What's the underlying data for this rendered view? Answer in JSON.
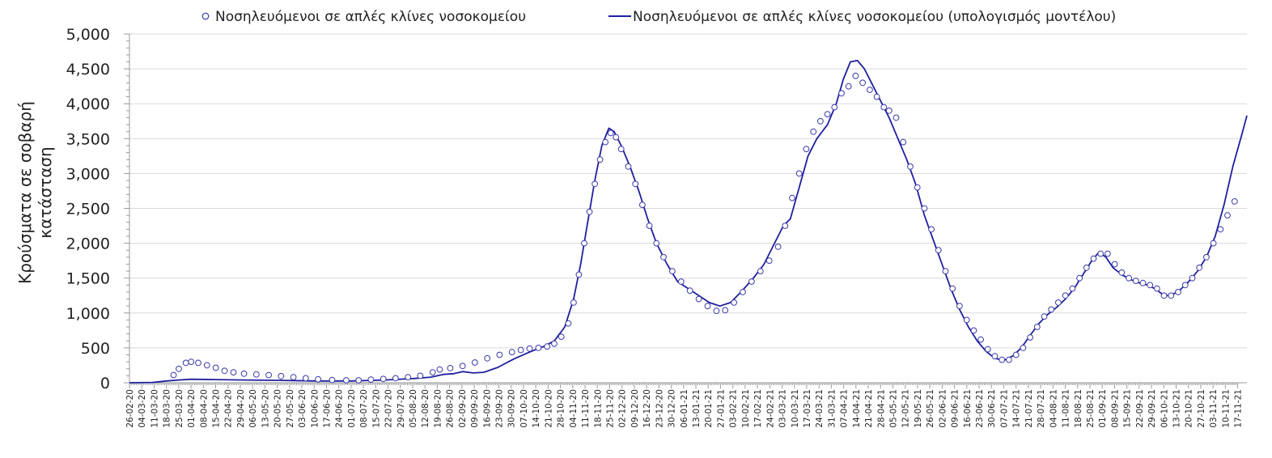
{
  "chart_data": {
    "type": "line",
    "title": "",
    "xlabel": "",
    "ylabel_lines": [
      "Κρούσματα σε σοβαρή",
      "κατάσταση"
    ],
    "ylim": [
      0,
      5000
    ],
    "y_ticks": [
      "0",
      "500",
      "1,000",
      "1,500",
      "2,000",
      "2,500",
      "3,000",
      "3,500",
      "4,000",
      "4,500",
      "5,000"
    ],
    "grid": "horizontal",
    "legend_position": "top",
    "x_start_date": "2020-02-26",
    "x_end_date": "2021-11-21",
    "categories": [
      "26-02-20",
      "04-03-20",
      "11-03-20",
      "18-03-20",
      "25-03-20",
      "01-04-20",
      "08-04-20",
      "15-04-20",
      "22-04-20",
      "29-04-20",
      "06-05-20",
      "13-05-20",
      "20-05-20",
      "27-05-20",
      "03-06-20",
      "10-06-20",
      "17-06-20",
      "24-06-20",
      "01-07-20",
      "08-07-20",
      "15-07-20",
      "22-07-20",
      "29-07-20",
      "05-08-20",
      "12-08-20",
      "19-08-20",
      "26-08-20",
      "02-09-20",
      "09-09-20",
      "16-09-20",
      "23-09-20",
      "30-09-20",
      "07-10-20",
      "14-10-20",
      "21-10-20",
      "28-10-20",
      "04-11-20",
      "11-11-20",
      "18-11-20",
      "25-11-20",
      "02-12-20",
      "09-12-20",
      "16-12-20",
      "23-12-20",
      "30-12-20",
      "06-01-21",
      "13-01-21",
      "20-01-21",
      "27-01-21",
      "03-02-21",
      "10-02-21",
      "17-02-21",
      "24-02-21",
      "03-03-21",
      "10-03-21",
      "17-03-21",
      "24-03-21",
      "31-03-21",
      "07-04-21",
      "14-04-21",
      "21-04-21",
      "28-04-21",
      "05-05-21",
      "12-05-21",
      "19-05-21",
      "26-05-21",
      "02-06-21",
      "09-06-21",
      "16-06-21",
      "23-06-21",
      "30-06-21",
      "07-07-21",
      "14-07-21",
      "21-07-21",
      "28-07-21",
      "04-08-21",
      "11-08-21",
      "18-08-21",
      "25-08-21",
      "01-09-21",
      "08-09-21",
      "15-09-21",
      "22-09-21",
      "29-09-21",
      "06-10-21",
      "13-10-21",
      "20-10-21",
      "27-10-21",
      "03-11-21",
      "10-11-21",
      "17-11-21"
    ],
    "series": [
      {
        "name": "Νοσηλευόμενοι σε απλές κλίνες νοσοκομείου",
        "kind": "scatter",
        "marker": "open-circle",
        "color": "#3a3aa8",
        "points": [
          [
            "2020-03-22",
            110
          ],
          [
            "2020-03-25",
            200
          ],
          [
            "2020-03-29",
            285
          ],
          [
            "2020-04-01",
            300
          ],
          [
            "2020-04-05",
            285
          ],
          [
            "2020-04-10",
            250
          ],
          [
            "2020-04-15",
            215
          ],
          [
            "2020-04-20",
            170
          ],
          [
            "2020-04-25",
            150
          ],
          [
            "2020-05-01",
            130
          ],
          [
            "2020-05-08",
            120
          ],
          [
            "2020-05-15",
            110
          ],
          [
            "2020-05-22",
            95
          ],
          [
            "2020-05-29",
            80
          ],
          [
            "2020-06-05",
            65
          ],
          [
            "2020-06-12",
            50
          ],
          [
            "2020-06-20",
            40
          ],
          [
            "2020-06-28",
            35
          ],
          [
            "2020-07-05",
            35
          ],
          [
            "2020-07-12",
            45
          ],
          [
            "2020-07-19",
            55
          ],
          [
            "2020-07-26",
            65
          ],
          [
            "2020-08-02",
            80
          ],
          [
            "2020-08-09",
            100
          ],
          [
            "2020-08-16",
            150
          ],
          [
            "2020-08-20",
            190
          ],
          [
            "2020-08-26",
            210
          ],
          [
            "2020-09-02",
            240
          ],
          [
            "2020-09-09",
            290
          ],
          [
            "2020-09-16",
            350
          ],
          [
            "2020-09-23",
            400
          ],
          [
            "2020-09-30",
            440
          ],
          [
            "2020-10-05",
            470
          ],
          [
            "2020-10-10",
            490
          ],
          [
            "2020-10-15",
            500
          ],
          [
            "2020-10-20",
            520
          ],
          [
            "2020-10-24",
            560
          ],
          [
            "2020-10-28",
            660
          ],
          [
            "2020-11-01",
            850
          ],
          [
            "2020-11-04",
            1150
          ],
          [
            "2020-11-07",
            1550
          ],
          [
            "2020-11-10",
            2000
          ],
          [
            "2020-11-13",
            2450
          ],
          [
            "2020-11-16",
            2850
          ],
          [
            "2020-11-19",
            3200
          ],
          [
            "2020-11-22",
            3450
          ],
          [
            "2020-11-25",
            3580
          ],
          [
            "2020-11-28",
            3520
          ],
          [
            "2020-12-01",
            3350
          ],
          [
            "2020-12-05",
            3100
          ],
          [
            "2020-12-09",
            2850
          ],
          [
            "2020-12-13",
            2550
          ],
          [
            "2020-12-17",
            2250
          ],
          [
            "2020-12-21",
            2000
          ],
          [
            "2020-12-25",
            1800
          ],
          [
            "2020-12-30",
            1600
          ],
          [
            "2021-01-04",
            1450
          ],
          [
            "2021-01-09",
            1320
          ],
          [
            "2021-01-14",
            1200
          ],
          [
            "2021-01-19",
            1100
          ],
          [
            "2021-01-24",
            1030
          ],
          [
            "2021-01-29",
            1040
          ],
          [
            "2021-02-03",
            1150
          ],
          [
            "2021-02-08",
            1300
          ],
          [
            "2021-02-13",
            1450
          ],
          [
            "2021-02-18",
            1600
          ],
          [
            "2021-02-23",
            1750
          ],
          [
            "2021-02-28",
            1950
          ],
          [
            "2021-03-04",
            2250
          ],
          [
            "2021-03-08",
            2650
          ],
          [
            "2021-03-12",
            3000
          ],
          [
            "2021-03-16",
            3350
          ],
          [
            "2021-03-20",
            3600
          ],
          [
            "2021-03-24",
            3750
          ],
          [
            "2021-03-28",
            3850
          ],
          [
            "2021-04-01",
            3950
          ],
          [
            "2021-04-05",
            4150
          ],
          [
            "2021-04-09",
            4250
          ],
          [
            "2021-04-13",
            4400
          ],
          [
            "2021-04-17",
            4300
          ],
          [
            "2021-04-21",
            4200
          ],
          [
            "2021-04-25",
            4100
          ],
          [
            "2021-04-29",
            3950
          ],
          [
            "2021-05-02",
            3900
          ],
          [
            "2021-05-06",
            3800
          ],
          [
            "2021-05-10",
            3450
          ],
          [
            "2021-05-14",
            3100
          ],
          [
            "2021-05-18",
            2800
          ],
          [
            "2021-05-22",
            2500
          ],
          [
            "2021-05-26",
            2200
          ],
          [
            "2021-05-30",
            1900
          ],
          [
            "2021-06-03",
            1600
          ],
          [
            "2021-06-07",
            1350
          ],
          [
            "2021-06-11",
            1100
          ],
          [
            "2021-06-15",
            900
          ],
          [
            "2021-06-19",
            750
          ],
          [
            "2021-06-23",
            620
          ],
          [
            "2021-06-27",
            480
          ],
          [
            "2021-07-01",
            380
          ],
          [
            "2021-07-05",
            330
          ],
          [
            "2021-07-09",
            330
          ],
          [
            "2021-07-13",
            400
          ],
          [
            "2021-07-17",
            500
          ],
          [
            "2021-07-21",
            650
          ],
          [
            "2021-07-25",
            800
          ],
          [
            "2021-07-29",
            950
          ],
          [
            "2021-08-02",
            1050
          ],
          [
            "2021-08-06",
            1150
          ],
          [
            "2021-08-10",
            1250
          ],
          [
            "2021-08-14",
            1350
          ],
          [
            "2021-08-18",
            1500
          ],
          [
            "2021-08-22",
            1650
          ],
          [
            "2021-08-26",
            1780
          ],
          [
            "2021-08-30",
            1850
          ],
          [
            "2021-09-03",
            1850
          ],
          [
            "2021-09-07",
            1700
          ],
          [
            "2021-09-11",
            1580
          ],
          [
            "2021-09-15",
            1500
          ],
          [
            "2021-09-19",
            1460
          ],
          [
            "2021-09-23",
            1430
          ],
          [
            "2021-09-27",
            1400
          ],
          [
            "2021-10-01",
            1350
          ],
          [
            "2021-10-05",
            1250
          ],
          [
            "2021-10-09",
            1250
          ],
          [
            "2021-10-13",
            1300
          ],
          [
            "2021-10-17",
            1400
          ],
          [
            "2021-10-21",
            1500
          ],
          [
            "2021-10-25",
            1650
          ],
          [
            "2021-10-29",
            1800
          ],
          [
            "2021-11-02",
            2000
          ],
          [
            "2021-11-06",
            2200
          ],
          [
            "2021-11-10",
            2400
          ],
          [
            "2021-11-14",
            2600
          ]
        ]
      },
      {
        "name": "Νοσηλευόμενοι σε απλές κλίνες νοσοκομείου (υπολογισμός μοντέλου)",
        "kind": "line",
        "color": "#1f1fa0",
        "points": [
          [
            "2020-02-26",
            0
          ],
          [
            "2020-03-10",
            5
          ],
          [
            "2020-03-18",
            25
          ],
          [
            "2020-03-25",
            40
          ],
          [
            "2020-04-01",
            50
          ],
          [
            "2020-04-15",
            45
          ],
          [
            "2020-05-01",
            40
          ],
          [
            "2020-05-20",
            35
          ],
          [
            "2020-06-10",
            25
          ],
          [
            "2020-07-01",
            25
          ],
          [
            "2020-07-20",
            40
          ],
          [
            "2020-08-05",
            60
          ],
          [
            "2020-08-15",
            80
          ],
          [
            "2020-08-22",
            120
          ],
          [
            "2020-08-28",
            130
          ],
          [
            "2020-09-02",
            160
          ],
          [
            "2020-09-08",
            140
          ],
          [
            "2020-09-14",
            150
          ],
          [
            "2020-09-22",
            220
          ],
          [
            "2020-10-01",
            340
          ],
          [
            "2020-10-10",
            440
          ],
          [
            "2020-10-18",
            520
          ],
          [
            "2020-10-24",
            600
          ],
          [
            "2020-10-30",
            800
          ],
          [
            "2020-11-04",
            1200
          ],
          [
            "2020-11-08",
            1700
          ],
          [
            "2020-11-12",
            2300
          ],
          [
            "2020-11-16",
            2900
          ],
          [
            "2020-11-20",
            3400
          ],
          [
            "2020-11-24",
            3650
          ],
          [
            "2020-11-27",
            3600
          ],
          [
            "2020-12-01",
            3400
          ],
          [
            "2020-12-06",
            3100
          ],
          [
            "2020-12-11",
            2750
          ],
          [
            "2020-12-16",
            2350
          ],
          [
            "2020-12-21",
            2000
          ],
          [
            "2020-12-27",
            1700
          ],
          [
            "2021-01-02",
            1450
          ],
          [
            "2021-01-08",
            1350
          ],
          [
            "2021-01-14",
            1250
          ],
          [
            "2021-01-20",
            1150
          ],
          [
            "2021-01-26",
            1100
          ],
          [
            "2021-02-01",
            1150
          ],
          [
            "2021-02-07",
            1300
          ],
          [
            "2021-02-14",
            1500
          ],
          [
            "2021-02-20",
            1700
          ],
          [
            "2021-02-26",
            2000
          ],
          [
            "2021-03-03",
            2250
          ],
          [
            "2021-03-07",
            2350
          ],
          [
            "2021-03-12",
            2800
          ],
          [
            "2021-03-17",
            3250
          ],
          [
            "2021-03-22",
            3500
          ],
          [
            "2021-03-28",
            3700
          ],
          [
            "2021-04-02",
            4000
          ],
          [
            "2021-04-06",
            4350
          ],
          [
            "2021-04-10",
            4600
          ],
          [
            "2021-04-14",
            4620
          ],
          [
            "2021-04-18",
            4500
          ],
          [
            "2021-04-22",
            4300
          ],
          [
            "2021-04-27",
            4050
          ],
          [
            "2021-05-02",
            3800
          ],
          [
            "2021-05-07",
            3500
          ],
          [
            "2021-05-12",
            3200
          ],
          [
            "2021-05-17",
            2850
          ],
          [
            "2021-05-22",
            2400
          ],
          [
            "2021-05-27",
            2050
          ],
          [
            "2021-06-01",
            1700
          ],
          [
            "2021-06-06",
            1350
          ],
          [
            "2021-06-11",
            1050
          ],
          [
            "2021-06-16",
            800
          ],
          [
            "2021-06-21",
            600
          ],
          [
            "2021-06-26",
            450
          ],
          [
            "2021-07-01",
            350
          ],
          [
            "2021-07-06",
            320
          ],
          [
            "2021-07-11",
            380
          ],
          [
            "2021-07-16",
            500
          ],
          [
            "2021-07-21",
            680
          ],
          [
            "2021-07-26",
            850
          ],
          [
            "2021-07-31",
            980
          ],
          [
            "2021-08-05",
            1080
          ],
          [
            "2021-08-10",
            1200
          ],
          [
            "2021-08-15",
            1350
          ],
          [
            "2021-08-20",
            1550
          ],
          [
            "2021-08-25",
            1750
          ],
          [
            "2021-08-29",
            1870
          ],
          [
            "2021-09-02",
            1800
          ],
          [
            "2021-09-06",
            1650
          ],
          [
            "2021-09-11",
            1550
          ],
          [
            "2021-09-16",
            1480
          ],
          [
            "2021-09-21",
            1430
          ],
          [
            "2021-09-26",
            1400
          ],
          [
            "2021-10-01",
            1330
          ],
          [
            "2021-10-05",
            1250
          ],
          [
            "2021-10-09",
            1250
          ],
          [
            "2021-10-14",
            1330
          ],
          [
            "2021-10-19",
            1450
          ],
          [
            "2021-10-24",
            1600
          ],
          [
            "2021-10-29",
            1800
          ],
          [
            "2021-11-03",
            2100
          ],
          [
            "2021-11-08",
            2550
          ],
          [
            "2021-11-13",
            3100
          ],
          [
            "2021-11-18",
            3550
          ],
          [
            "2021-11-21",
            3830
          ]
        ]
      }
    ]
  }
}
